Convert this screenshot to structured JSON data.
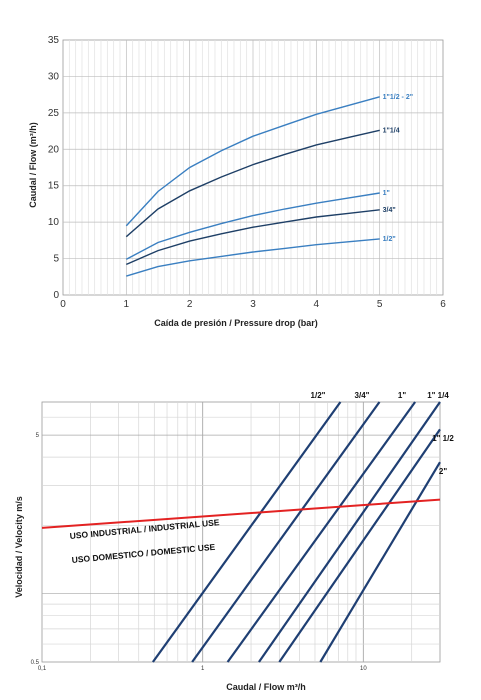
{
  "chart_data": [
    {
      "type": "line",
      "xlabel": "Caída de presión / Pressure drop (bar)",
      "ylabel": "Caudal / Flow (m³/h)",
      "xlim": [
        0,
        6
      ],
      "ylim": [
        0,
        35
      ],
      "xticks": [
        "0",
        "1",
        "2",
        "3",
        "4",
        "5",
        "6"
      ],
      "yticks": [
        "0",
        "5",
        "10",
        "15",
        "20",
        "25",
        "30",
        "35"
      ],
      "grid": true,
      "series": [
        {
          "name": "1\"1/2 - 2\"",
          "color": "#3a7fc1",
          "x": [
            1,
            1.5,
            2,
            2.5,
            3,
            3.5,
            4,
            4.5,
            5
          ],
          "y": [
            9.5,
            14.2,
            17.5,
            19.8,
            21.8,
            23.3,
            24.8,
            26.0,
            27.2
          ]
        },
        {
          "name": "1\"1/4",
          "color": "#1e3f66",
          "x": [
            1,
            1.5,
            2,
            2.5,
            3,
            3.5,
            4,
            4.5,
            5
          ],
          "y": [
            8.0,
            11.8,
            14.3,
            16.2,
            17.9,
            19.3,
            20.6,
            21.6,
            22.6
          ]
        },
        {
          "name": "1\"",
          "color": "#3a7fc1",
          "x": [
            1,
            1.5,
            2,
            2.5,
            3,
            3.5,
            4,
            4.5,
            5
          ],
          "y": [
            4.9,
            7.2,
            8.6,
            9.8,
            10.9,
            11.8,
            12.6,
            13.3,
            14.0
          ]
        },
        {
          "name": "3/4\"",
          "color": "#1e3f66",
          "x": [
            1,
            1.5,
            2,
            2.5,
            3,
            3.5,
            4,
            4.5,
            5
          ],
          "y": [
            4.2,
            6.1,
            7.4,
            8.4,
            9.3,
            10.0,
            10.7,
            11.2,
            11.7
          ]
        },
        {
          "name": "1/2\"",
          "color": "#3a7fc1",
          "x": [
            1,
            1.5,
            2,
            2.5,
            3,
            3.5,
            4,
            4.5,
            5
          ],
          "y": [
            2.6,
            3.9,
            4.7,
            5.3,
            5.9,
            6.4,
            6.9,
            7.3,
            7.7
          ]
        }
      ]
    },
    {
      "type": "line",
      "xlabel": "Caudal / Flow m³/h",
      "ylabel": "Velocidad / Velocity m/s",
      "xscale": "log",
      "yscale": "log",
      "xlim": [
        0.1,
        30
      ],
      "ylim": [
        0.5,
        7
      ],
      "xticks": [
        "0,1",
        "1",
        "10"
      ],
      "yticks": [
        "0.5",
        "5"
      ],
      "grid": true,
      "series": [
        {
          "name": "1/2\"",
          "color": "#1f3f73",
          "x": [
            0.49,
            7.2
          ],
          "y": [
            0.5,
            7
          ]
        },
        {
          "name": "3/4\"",
          "color": "#1f3f73",
          "x": [
            0.86,
            12.6
          ],
          "y": [
            0.5,
            7
          ]
        },
        {
          "name": "1\"",
          "color": "#1f3f73",
          "x": [
            1.43,
            21
          ],
          "y": [
            0.5,
            7
          ]
        },
        {
          "name": "1\" 1/4",
          "color": "#1f3f73",
          "x": [
            2.24,
            30
          ],
          "y": [
            0.5,
            7
          ]
        },
        {
          "name": "1\" 1/2",
          "color": "#1f3f73",
          "x": [
            3.0,
            30
          ],
          "y": [
            0.5,
            5.3
          ]
        },
        {
          "name": "2\"",
          "color": "#1f3f73",
          "x": [
            5.4,
            30
          ],
          "y": [
            0.5,
            3.8
          ]
        },
        {
          "name": "USO INDUSTRIAL / INDUSTRIAL USE",
          "color": "#e32222",
          "x": [
            0.1,
            30
          ],
          "y": [
            1.95,
            2.6
          ]
        }
      ],
      "band_labels": [
        "USO INDUSTRIAL / INDUSTRIAL USE",
        "USO DOMESTICO / DOMESTIC USE"
      ]
    }
  ]
}
